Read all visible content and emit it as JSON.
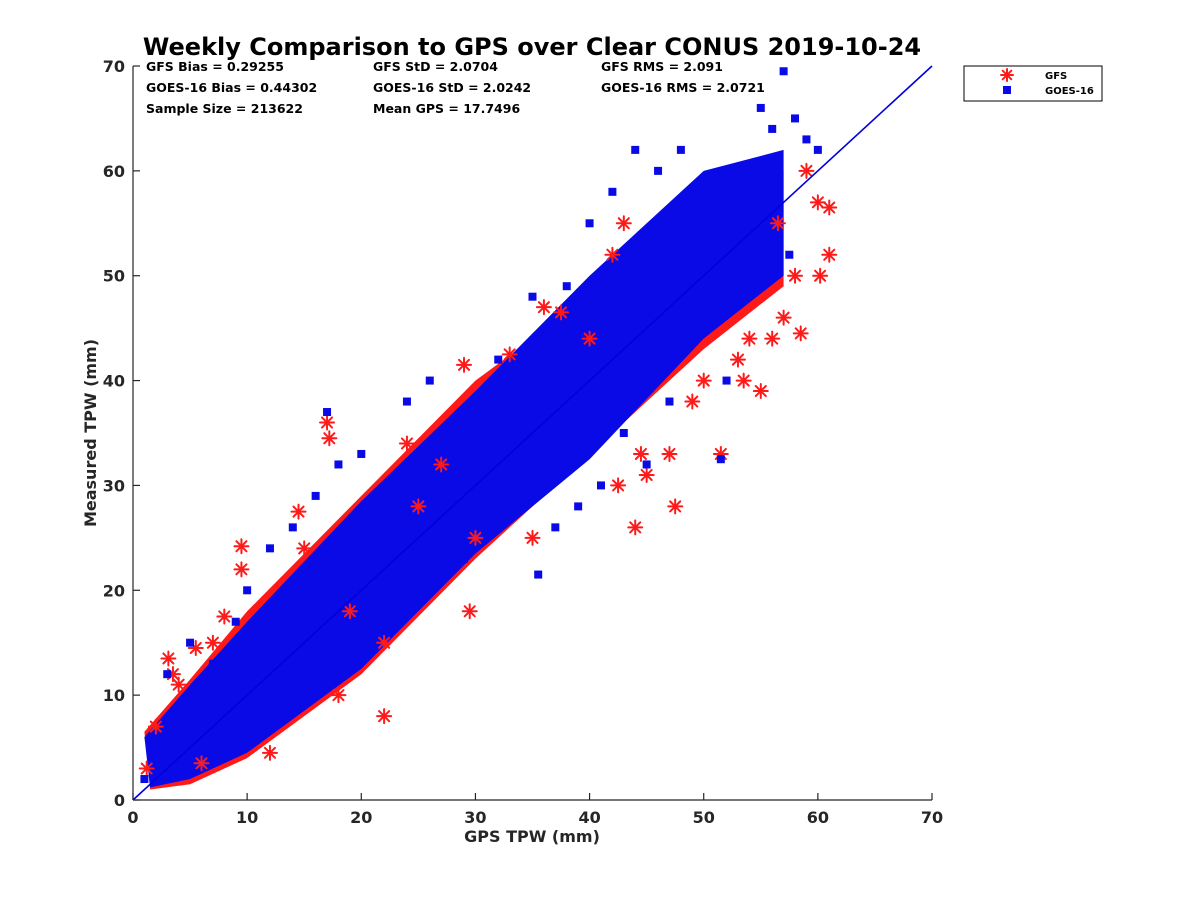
{
  "chart_data": {
    "type": "scatter",
    "title": "Weekly Comparison to GPS over Clear CONUS 2019-10-24",
    "xlabel": "GPS TPW (mm)",
    "ylabel": "Measured TPW (mm)",
    "xlim": [
      0,
      70
    ],
    "ylim": [
      0,
      70
    ],
    "xticks": [
      "0",
      "10",
      "20",
      "30",
      "40",
      "50",
      "60",
      "70"
    ],
    "yticks": [
      "0",
      "10",
      "20",
      "30",
      "40",
      "50",
      "60",
      "70"
    ],
    "grid": false,
    "legend_position": "outside-top-right",
    "reference_line": {
      "x": [
        0,
        70
      ],
      "y": [
        0,
        70
      ],
      "color": "#0000dd"
    },
    "stats": [
      "GFS Bias = 0.29255",
      "GFS StD = 2.0704",
      "GFS RMS = 2.091",
      "GOES-16 Bias = 0.44302",
      "GOES-16 StD = 2.0242",
      "GOES-16 RMS = 2.0721",
      "Sample Size = 213622",
      "Mean GPS = 17.7496"
    ],
    "series": [
      {
        "name": "GFS",
        "marker": "asterisk",
        "color": "#ff1a1a",
        "x": [
          1.2,
          2.0,
          3.1,
          4.0,
          5.5,
          7.0,
          9.5,
          9.5,
          12.0,
          14.5,
          17.0,
          17.2,
          19.0,
          22.0,
          24.0,
          27.0,
          29.0,
          29.5,
          33.0,
          35.0,
          36.0,
          37.5,
          40.0,
          42.0,
          43.0,
          44.0,
          45.0,
          47.0,
          49.0,
          50.0,
          51.5,
          53.0,
          54.0,
          56.0,
          57.0,
          58.0,
          58.5,
          59.0,
          60.0,
          61.0,
          61.0,
          60.2,
          56.5,
          55.0,
          53.5,
          47.5,
          44.5,
          42.5,
          30.0,
          22.0,
          18.0,
          25.0,
          3.5,
          8.0,
          6.0,
          15.0
        ],
        "y": [
          3.0,
          7.0,
          13.5,
          11.0,
          14.5,
          15.0,
          24.2,
          22.0,
          4.5,
          27.5,
          36.0,
          34.5,
          18.0,
          8.0,
          34.0,
          32.0,
          41.5,
          18.0,
          42.5,
          25.0,
          47.0,
          46.5,
          44.0,
          52.0,
          55.0,
          26.0,
          31.0,
          33.0,
          38.0,
          40.0,
          33.0,
          42.0,
          44.0,
          44.0,
          46.0,
          50.0,
          44.5,
          60.0,
          57.0,
          52.0,
          56.5,
          50.0,
          55.0,
          39.0,
          40.0,
          28.0,
          33.0,
          30.0,
          25.0,
          15.0,
          10.0,
          28.0,
          12.0,
          17.5,
          3.5,
          24.0
        ]
      },
      {
        "name": "GOES-16",
        "marker": "square",
        "color": "#0a0ae6",
        "x": [
          1.0,
          2.0,
          3.0,
          4.0,
          5.0,
          7.0,
          9.0,
          10.0,
          12.0,
          14.0,
          16.0,
          17.0,
          18.0,
          20.0,
          22.0,
          24.0,
          26.0,
          28.0,
          30.0,
          32.0,
          34.0,
          35.0,
          36.0,
          38.0,
          40.0,
          42.0,
          44.0,
          46.0,
          48.0,
          50.0,
          51.5,
          52.0,
          54.0,
          55.0,
          56.0,
          57.0,
          58.0,
          59.0,
          60.0,
          47.0,
          45.0,
          43.0,
          41.0,
          39.0,
          37.0,
          35.5,
          29.0,
          53.0,
          57.5
        ],
        "y": [
          2.0,
          5.0,
          12.0,
          8.0,
          15.0,
          13.0,
          17.0,
          20.0,
          24.0,
          26.0,
          29.0,
          37.0,
          32.0,
          33.0,
          25.0,
          38.0,
          40.0,
          35.0,
          33.0,
          42.0,
          36.0,
          48.0,
          40.0,
          49.0,
          55.0,
          58.0,
          62.0,
          60.0,
          62.0,
          55.0,
          32.5,
          40.0,
          55.0,
          66.0,
          64.0,
          69.5,
          65.0,
          63.0,
          62.0,
          38.0,
          32.0,
          35.0,
          30.0,
          28.0,
          26.0,
          21.5,
          23.0,
          48.0,
          52.0
        ]
      }
    ],
    "density_bands": [
      {
        "series": "GFS",
        "center": [
          [
            1.0,
            1.5
          ],
          [
            5.0,
            4.5
          ],
          [
            10.0,
            9.5
          ],
          [
            20.0,
            19.5
          ],
          [
            30.0,
            30.0
          ],
          [
            40.0,
            40.0
          ],
          [
            50.0,
            49.0
          ],
          [
            57.0,
            55.0
          ]
        ],
        "upper": [
          [
            1.0,
            6.5
          ],
          [
            5.0,
            11.5
          ],
          [
            10.0,
            18.0
          ],
          [
            20.0,
            29.0
          ],
          [
            30.0,
            40.0
          ],
          [
            40.0,
            48.0
          ],
          [
            50.0,
            57.0
          ],
          [
            57.0,
            60.0
          ]
        ],
        "lower": [
          [
            1.5,
            1.0
          ],
          [
            5.0,
            1.5
          ],
          [
            10.0,
            4.0
          ],
          [
            20.0,
            12.0
          ],
          [
            30.0,
            23.0
          ],
          [
            40.0,
            33.0
          ],
          [
            50.0,
            43.0
          ],
          [
            57.0,
            49.0
          ]
        ]
      },
      {
        "series": "GOES-16",
        "center": [
          [
            1.0,
            1.5
          ],
          [
            5.0,
            5.0
          ],
          [
            10.0,
            10.0
          ],
          [
            20.0,
            20.0
          ],
          [
            30.0,
            30.5
          ],
          [
            40.0,
            40.5
          ],
          [
            50.0,
            50.0
          ],
          [
            57.0,
            56.0
          ]
        ],
        "upper": [
          [
            1.0,
            6.0
          ],
          [
            5.0,
            11.0
          ],
          [
            10.0,
            17.0
          ],
          [
            20.0,
            28.5
          ],
          [
            30.0,
            39.0
          ],
          [
            40.0,
            50.0
          ],
          [
            50.0,
            60.0
          ],
          [
            57.0,
            62.0
          ]
        ],
        "lower": [
          [
            1.5,
            1.2
          ],
          [
            5.0,
            2.0
          ],
          [
            10.0,
            4.5
          ],
          [
            20.0,
            12.5
          ],
          [
            30.0,
            23.5
          ],
          [
            40.0,
            32.5
          ],
          [
            50.0,
            44.0
          ],
          [
            57.0,
            50.0
          ]
        ]
      }
    ]
  }
}
